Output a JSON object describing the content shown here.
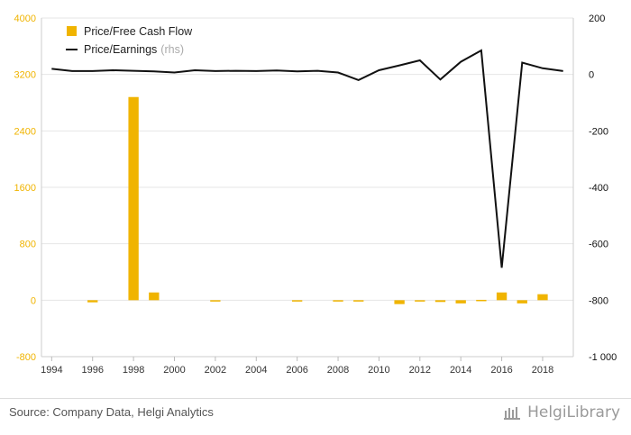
{
  "chart_data": {
    "type": "bar+line",
    "title": "",
    "x_ticks": [
      "1994",
      "1996",
      "1998",
      "2000",
      "2002",
      "2004",
      "2006",
      "2008",
      "2010",
      "2012",
      "2014",
      "2016",
      "2018"
    ],
    "x_range": [
      1993.5,
      2019.5
    ],
    "left_axis": {
      "ticks": [
        "4000",
        "3200",
        "2400",
        "1600",
        "800",
        "0",
        "-800"
      ],
      "range": [
        -800,
        4000
      ],
      "color": "#f0b400"
    },
    "right_axis": {
      "ticks": [
        "200",
        "0",
        "-200",
        "-400",
        "-600",
        "-800",
        "-1 000"
      ],
      "range": [
        -1000,
        200
      ],
      "color": "#111111"
    },
    "grid": true,
    "legend_position": "top-left",
    "series": [
      {
        "name": "Price/Free Cash Flow",
        "axis": "left",
        "type": "bar",
        "color": "#f0b400",
        "points": [
          [
            1996,
            -30
          ],
          [
            1998,
            2880
          ],
          [
            1999,
            110
          ],
          [
            2002,
            -8
          ],
          [
            2006,
            -10
          ],
          [
            2008,
            -12
          ],
          [
            2009,
            -15
          ],
          [
            2011,
            -55
          ],
          [
            2012,
            -18
          ],
          [
            2013,
            -25
          ],
          [
            2014,
            -45
          ],
          [
            2015,
            5
          ],
          [
            2016,
            110
          ],
          [
            2017,
            -45
          ],
          [
            2018,
            85
          ]
        ]
      },
      {
        "name": "Price/Earnings",
        "suffix": "(rhs)",
        "axis": "right",
        "type": "line",
        "color": "#111111",
        "points": [
          [
            1994,
            20
          ],
          [
            1995,
            12
          ],
          [
            1996,
            12
          ],
          [
            1997,
            15
          ],
          [
            1998,
            13
          ],
          [
            1999,
            11
          ],
          [
            2000,
            7
          ],
          [
            2001,
            15
          ],
          [
            2002,
            12
          ],
          [
            2003,
            13
          ],
          [
            2004,
            12
          ],
          [
            2005,
            14
          ],
          [
            2006,
            11
          ],
          [
            2007,
            13
          ],
          [
            2008,
            7
          ],
          [
            2009,
            -20
          ],
          [
            2010,
            15
          ],
          [
            2011,
            32
          ],
          [
            2012,
            50
          ],
          [
            2013,
            -18
          ],
          [
            2014,
            45
          ],
          [
            2015,
            85
          ],
          [
            2016,
            -685
          ],
          [
            2017,
            42
          ],
          [
            2018,
            22
          ],
          [
            2019,
            12
          ]
        ]
      }
    ]
  },
  "footer": {
    "source": "Source: Company Data, Helgi Analytics",
    "brand": "HelgiLibrary"
  }
}
